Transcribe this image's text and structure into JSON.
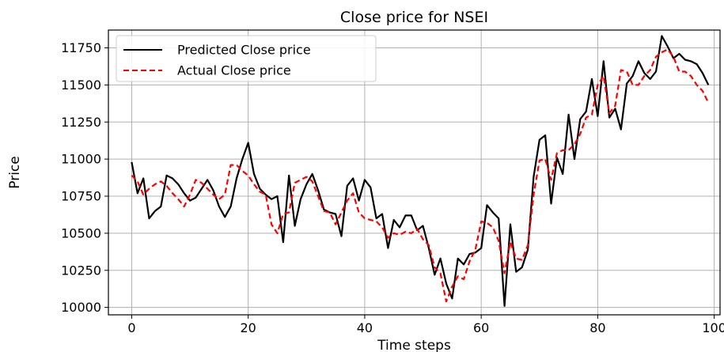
{
  "chart_data": {
    "type": "line",
    "title": "Close price for NSEI",
    "xlabel": "Time steps",
    "ylabel": "Price",
    "xlim": [
      -4,
      101
    ],
    "ylim": [
      9950,
      11870
    ],
    "xticks": [
      0,
      20,
      40,
      60,
      80,
      100
    ],
    "yticks": [
      10000,
      10250,
      10500,
      10750,
      11000,
      11250,
      11500,
      11750
    ],
    "grid": true,
    "legend_position": "top-left",
    "series": [
      {
        "name": "Predicted Close price",
        "color": "#000000",
        "style": "solid",
        "x": [
          0,
          1,
          2,
          3,
          4,
          5,
          6,
          7,
          8,
          9,
          10,
          11,
          12,
          13,
          14,
          15,
          16,
          17,
          18,
          19,
          20,
          21,
          22,
          23,
          24,
          25,
          26,
          27,
          28,
          29,
          30,
          31,
          32,
          33,
          34,
          35,
          36,
          37,
          38,
          39,
          40,
          41,
          42,
          43,
          44,
          45,
          46,
          47,
          48,
          49,
          50,
          51,
          52,
          53,
          54,
          55,
          56,
          57,
          58,
          59,
          60,
          61,
          62,
          63,
          64,
          65,
          66,
          67,
          68,
          69,
          70,
          71,
          72,
          73,
          74,
          75,
          76,
          77,
          78,
          79,
          80,
          81,
          82,
          83,
          84,
          85,
          86,
          87,
          88,
          89,
          90,
          91,
          92,
          93,
          94,
          95,
          96,
          97,
          98,
          99
        ],
        "values": [
          10980,
          10770,
          10870,
          10600,
          10650,
          10680,
          10890,
          10870,
          10830,
          10770,
          10720,
          10740,
          10800,
          10860,
          10790,
          10680,
          10610,
          10680,
          10870,
          11000,
          11110,
          10900,
          10800,
          10760,
          10730,
          10750,
          10440,
          10890,
          10550,
          10730,
          10830,
          10900,
          10790,
          10660,
          10640,
          10630,
          10480,
          10820,
          10870,
          10720,
          10860,
          10810,
          10600,
          10630,
          10400,
          10590,
          10540,
          10620,
          10620,
          10520,
          10550,
          10400,
          10220,
          10330,
          10160,
          10060,
          10330,
          10290,
          10360,
          10370,
          10400,
          10690,
          10640,
          10600,
          10010,
          10560,
          10240,
          10270,
          10390,
          10880,
          11130,
          11160,
          10700,
          11010,
          10900,
          11300,
          11000,
          11270,
          11320,
          11540,
          11290,
          11660,
          11280,
          11340,
          11200,
          11510,
          11560,
          11660,
          11580,
          11540,
          11590,
          11830,
          11760,
          11680,
          11710,
          11670,
          11660,
          11640,
          11580,
          11500
        ]
      },
      {
        "name": "Actual Close price",
        "color": "#ff0000",
        "style": "dashed",
        "x": [
          0,
          1,
          2,
          3,
          4,
          5,
          6,
          7,
          8,
          9,
          10,
          11,
          12,
          13,
          14,
          15,
          16,
          17,
          18,
          19,
          20,
          21,
          22,
          23,
          24,
          25,
          26,
          27,
          28,
          29,
          30,
          31,
          32,
          33,
          34,
          35,
          36,
          37,
          38,
          39,
          40,
          41,
          42,
          43,
          44,
          45,
          46,
          47,
          48,
          49,
          50,
          51,
          52,
          53,
          54,
          55,
          56,
          57,
          58,
          59,
          60,
          61,
          62,
          63,
          64,
          65,
          66,
          67,
          68,
          69,
          70,
          71,
          72,
          73,
          74,
          75,
          76,
          77,
          78,
          79,
          80,
          81,
          82,
          83,
          84,
          85,
          86,
          87,
          88,
          89,
          90,
          91,
          92,
          93,
          94,
          95,
          96,
          97,
          98,
          99
        ],
        "values": [
          10890,
          10850,
          10760,
          10800,
          10830,
          10850,
          10820,
          10770,
          10730,
          10680,
          10760,
          10860,
          10840,
          10800,
          10760,
          10730,
          10760,
          10960,
          10960,
          10920,
          10890,
          10830,
          10780,
          10760,
          10560,
          10500,
          10630,
          10640,
          10840,
          10860,
          10880,
          10850,
          10750,
          10650,
          10640,
          10560,
          10640,
          10720,
          10770,
          10640,
          10600,
          10590,
          10580,
          10540,
          10470,
          10500,
          10490,
          10510,
          10500,
          10530,
          10460,
          10420,
          10270,
          10230,
          10040,
          10140,
          10210,
          10190,
          10310,
          10390,
          10580,
          10570,
          10540,
          10450,
          10230,
          10440,
          10330,
          10320,
          10420,
          10760,
          10990,
          11000,
          10860,
          11040,
          11060,
          11060,
          11100,
          11170,
          11280,
          11300,
          11500,
          11560,
          11310,
          11360,
          11600,
          11590,
          11500,
          11500,
          11560,
          11600,
          11690,
          11720,
          11740,
          11690,
          11590,
          11590,
          11560,
          11500,
          11460,
          11380
        ]
      }
    ]
  }
}
